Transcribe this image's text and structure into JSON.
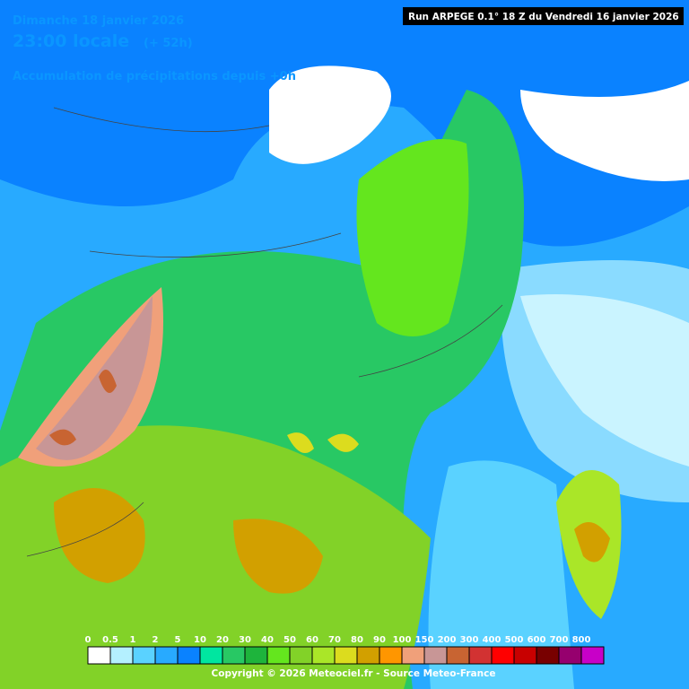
{
  "header": {
    "date": "Dimanche 18 janvier 2026",
    "time": "23:00 locale",
    "lead": "(+ 52h)",
    "subtitle": "Accumulation de précipitations depuis +0h",
    "run": "Run ARPEGE 0.1° 18 Z du Vendredi 16 janvier 2026"
  },
  "legend": {
    "values": [
      0,
      0.5,
      1,
      2,
      5,
      10,
      20,
      30,
      40,
      50,
      60,
      70,
      80,
      90,
      100,
      150,
      200,
      300,
      400,
      500,
      600,
      700,
      800
    ],
    "colors": [
      "#ffffff",
      "#b4f0ff",
      "#5ad2ff",
      "#28aaff",
      "#0a82ff",
      "#00e6a0",
      "#28c864",
      "#1eb43c",
      "#64e61e",
      "#82d228",
      "#aae628",
      "#dcdc1e",
      "#d2a000",
      "#ff9600",
      "#f0a07a",
      "#c89696",
      "#c86432",
      "#d23232",
      "#ff0000",
      "#c80000",
      "#780000",
      "#96006e",
      "#c800c8"
    ]
  },
  "footer": {
    "copyright": "Copyright © 2026 Meteociel.fr - Source Meteo-France"
  }
}
